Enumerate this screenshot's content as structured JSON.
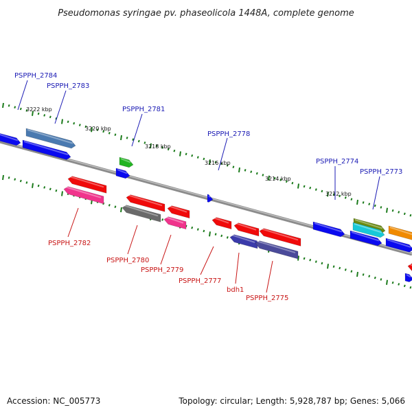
{
  "title": "Pseudomonas syringae pv. phaseolicola 1448A, complete genome",
  "footer": {
    "accession": "Accession: NC_005773",
    "topology": "Topology: circular; Length: 5,928,787 bp; Genes: 5,066"
  },
  "ticks": [
    "3222 kbp",
    "3220 kbp",
    "3218 kbp",
    "3216 kbp",
    "3214 kbp",
    "3212 kbp"
  ],
  "gene_labels": {
    "upper": [
      "PSPPH_2784",
      "PSPPH_2783",
      "PSPPH_2781",
      "PSPPH_2778",
      "PSPPH_2774",
      "PSPPH_2773"
    ],
    "lower": [
      "PSPPH_2782",
      "PSPPH_2780",
      "PSPPH_2779",
      "PSPPH_2777",
      "bdh1",
      "PSPPH_2775"
    ]
  },
  "colors": {
    "backbone": "#7a7a7a",
    "ticks": "#1a7a1a",
    "upper_label": "#1a1ab4",
    "lower_label": "#c81414"
  }
}
